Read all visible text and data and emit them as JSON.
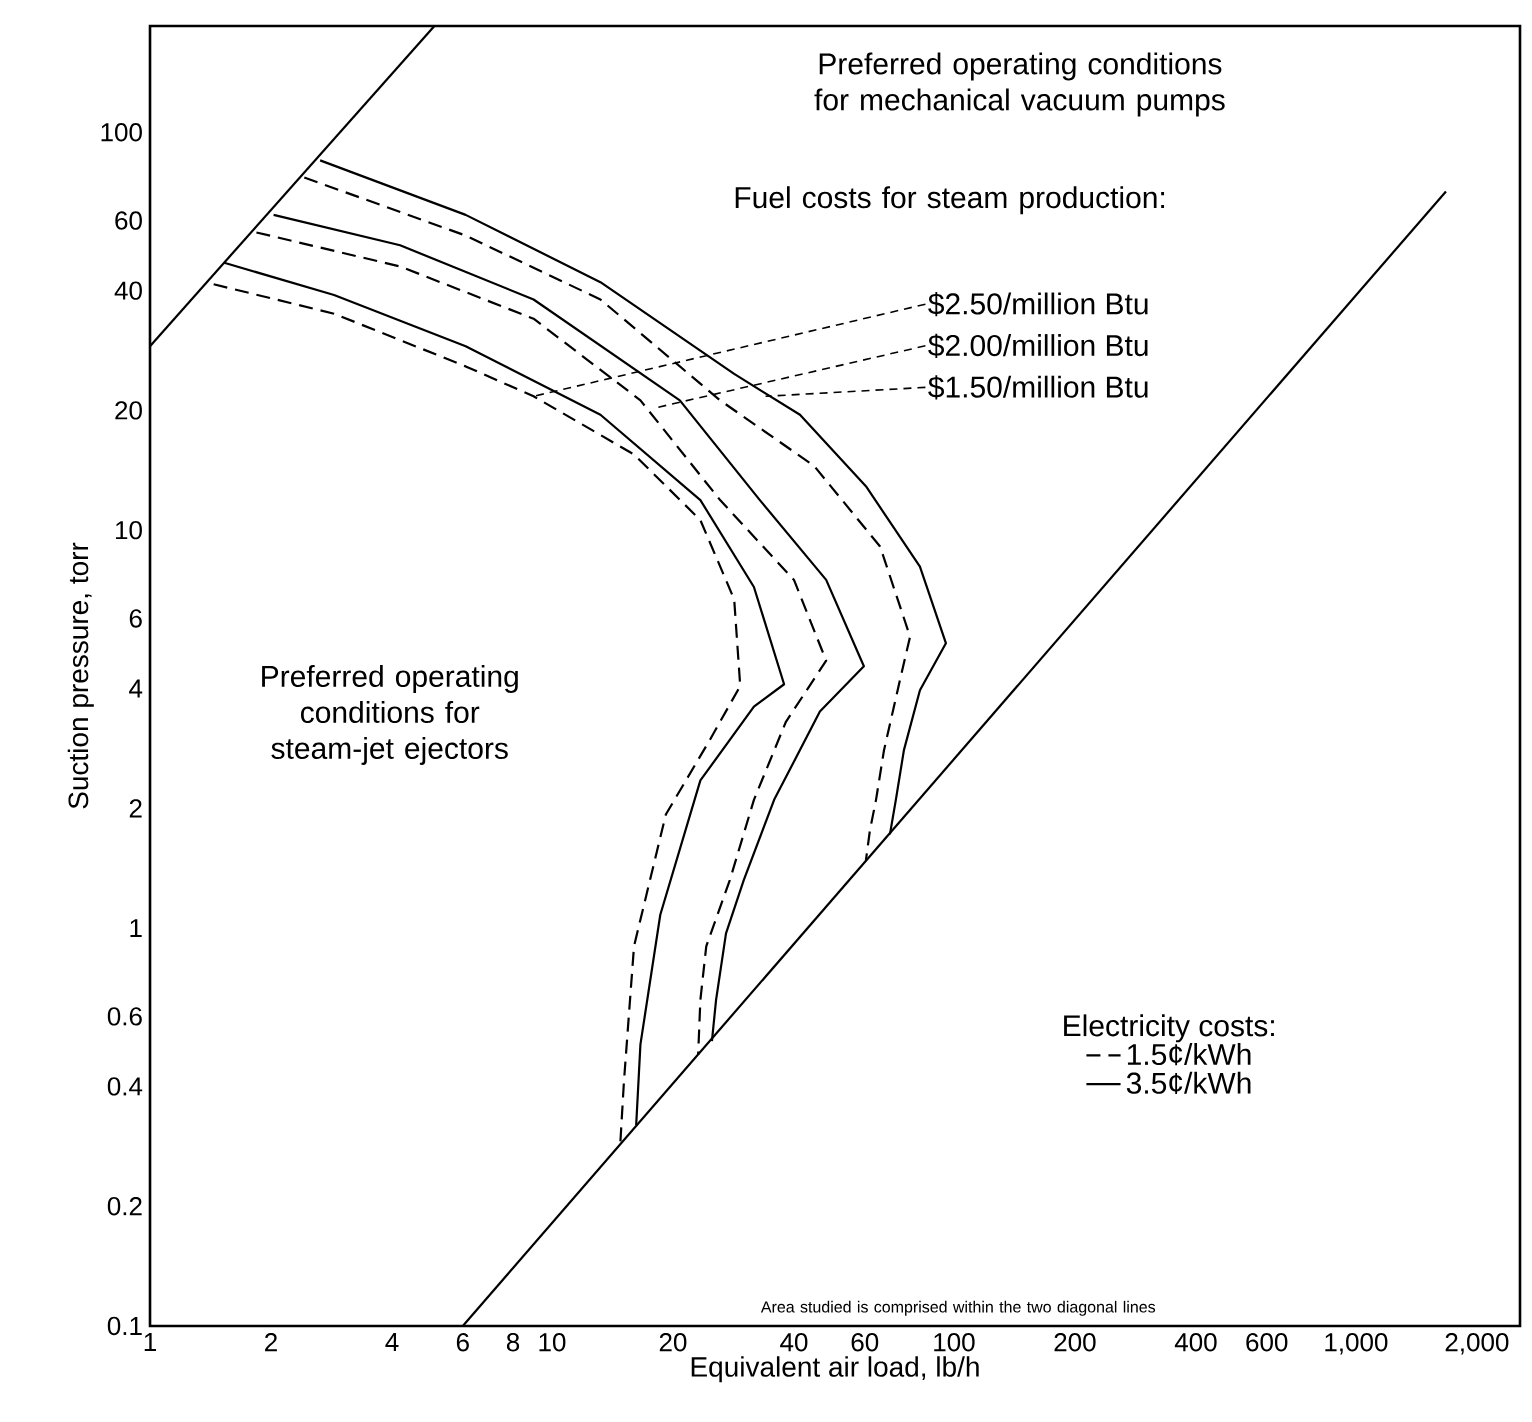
{
  "chart_data": {
    "type": "line",
    "xlabel": "Equivalent air load, lb/h",
    "ylabel": "Suction pressure, torr",
    "log": "xy",
    "xlim": [
      1,
      2560
    ],
    "ylim": [
      0.1,
      185
    ],
    "xticks": [
      1,
      2,
      4,
      6,
      8,
      10,
      20,
      40,
      60,
      100,
      200,
      400,
      600,
      {
        "value": 1000,
        "label": "1,000"
      },
      {
        "value": 2000,
        "label": "2,000"
      }
    ],
    "yticks": [
      0.1,
      0.2,
      0.4,
      0.6,
      1,
      2,
      4,
      6,
      10,
      20,
      40,
      60,
      100
    ],
    "legend": "bottom right",
    "legend_title": "Electricity costs:",
    "series": [
      {
        "name": "1.5¢/kWh",
        "color": "#000000",
        "line_style": "dashed",
        "x": [
          1.44,
          2.87,
          6.1,
          9.0,
          16.0,
          23.4,
          28.4,
          29.4,
          24.7,
          19.2,
          16.0,
          15.1,
          14.8
        ],
        "values": [
          41.5,
          35,
          25.8,
          21.7,
          15.5,
          10.6,
          6.7,
          4.06,
          2.97,
          1.93,
          0.9,
          0.41,
          0.29
        ]
      },
      {
        "name": "3.5¢/kWh",
        "color": "#000000",
        "line_style": "solid",
        "x": [
          1.53,
          2.87,
          6.1,
          13.2,
          23.4,
          31.8,
          37.8,
          31.8,
          23.4,
          18.6,
          16.6,
          16.2
        ],
        "values": [
          47,
          39,
          29,
          19.5,
          11.9,
          7.2,
          4.1,
          3.6,
          2.35,
          1.08,
          0.51,
          0.32
        ]
      },
      {
        "color": "#000000",
        "line_style": "dashed",
        "x": [
          1.84,
          4.19,
          9.0,
          16.6,
          26.2,
          40.0,
          48.1,
          38.2,
          31.8,
          27.7,
          24.2,
          23.4,
          23.1
        ],
        "values": [
          56,
          46,
          34,
          21.2,
          11.9,
          7.5,
          4.7,
          3.3,
          2.1,
          1.32,
          0.9,
          0.66,
          0.48
        ]
      },
      {
        "color": "#000000",
        "line_style": "solid",
        "x": [
          2.03,
          4.19,
          9.0,
          20.8,
          32.9,
          48.1,
          59.7,
          46.4,
          35.7,
          30.0,
          27.1,
          25.6,
          25.0
        ],
        "values": [
          62,
          52,
          38,
          21.2,
          11.9,
          7.5,
          4.55,
          3.5,
          2.1,
          1.32,
          0.97,
          0.66,
          0.52
        ]
      },
      {
        "color": "#000000",
        "line_style": "dashed",
        "x": [
          2.42,
          6.1,
          13.2,
          26.2,
          44.9,
          65.5,
          77.8,
          73.4,
          67.0,
          64.0,
          61.8,
          60.4
        ],
        "values": [
          77,
          55,
          38,
          21.2,
          14.5,
          9.1,
          5.4,
          4.2,
          2.8,
          2.1,
          1.76,
          1.48
        ]
      },
      {
        "color": "#000000",
        "line_style": "solid",
        "x": [
          2.65,
          6.1,
          13.2,
          28.4,
          41.4,
          60.4,
          82.3,
          95.5,
          82.3,
          75.1,
          71.7,
          69.3
        ],
        "values": [
          85,
          62,
          42,
          24.7,
          19.5,
          12.9,
          8.1,
          5.2,
          3.96,
          2.8,
          2.1,
          1.72
        ]
      },
      {
        "color": "#000000",
        "line_style": "solid",
        "x": [
          1,
          5.1
        ],
        "values": [
          29,
          185
        ]
      },
      {
        "color": "#000000",
        "line_style": "solid",
        "x": [
          6,
          1675
        ],
        "values": [
          0.1,
          71
        ]
      }
    ],
    "annotations": [
      "Preferred operating conditions for mechanical vacuum pumps",
      "Fuel costs for steam production:",
      {
        "text": "$2.50/million Btu",
        "x": 9.0,
        "y": 21.7
      },
      {
        "text": "$2.00/million Btu",
        "x": 18.1,
        "y": 20.3
      },
      {
        "text": "$1.50/million Btu",
        "x": 34,
        "y": 21.7
      },
      "Preferred operating conditions for steam-jet ejectors",
      "Area studied is comprised within the two diagonal lines"
    ]
  }
}
